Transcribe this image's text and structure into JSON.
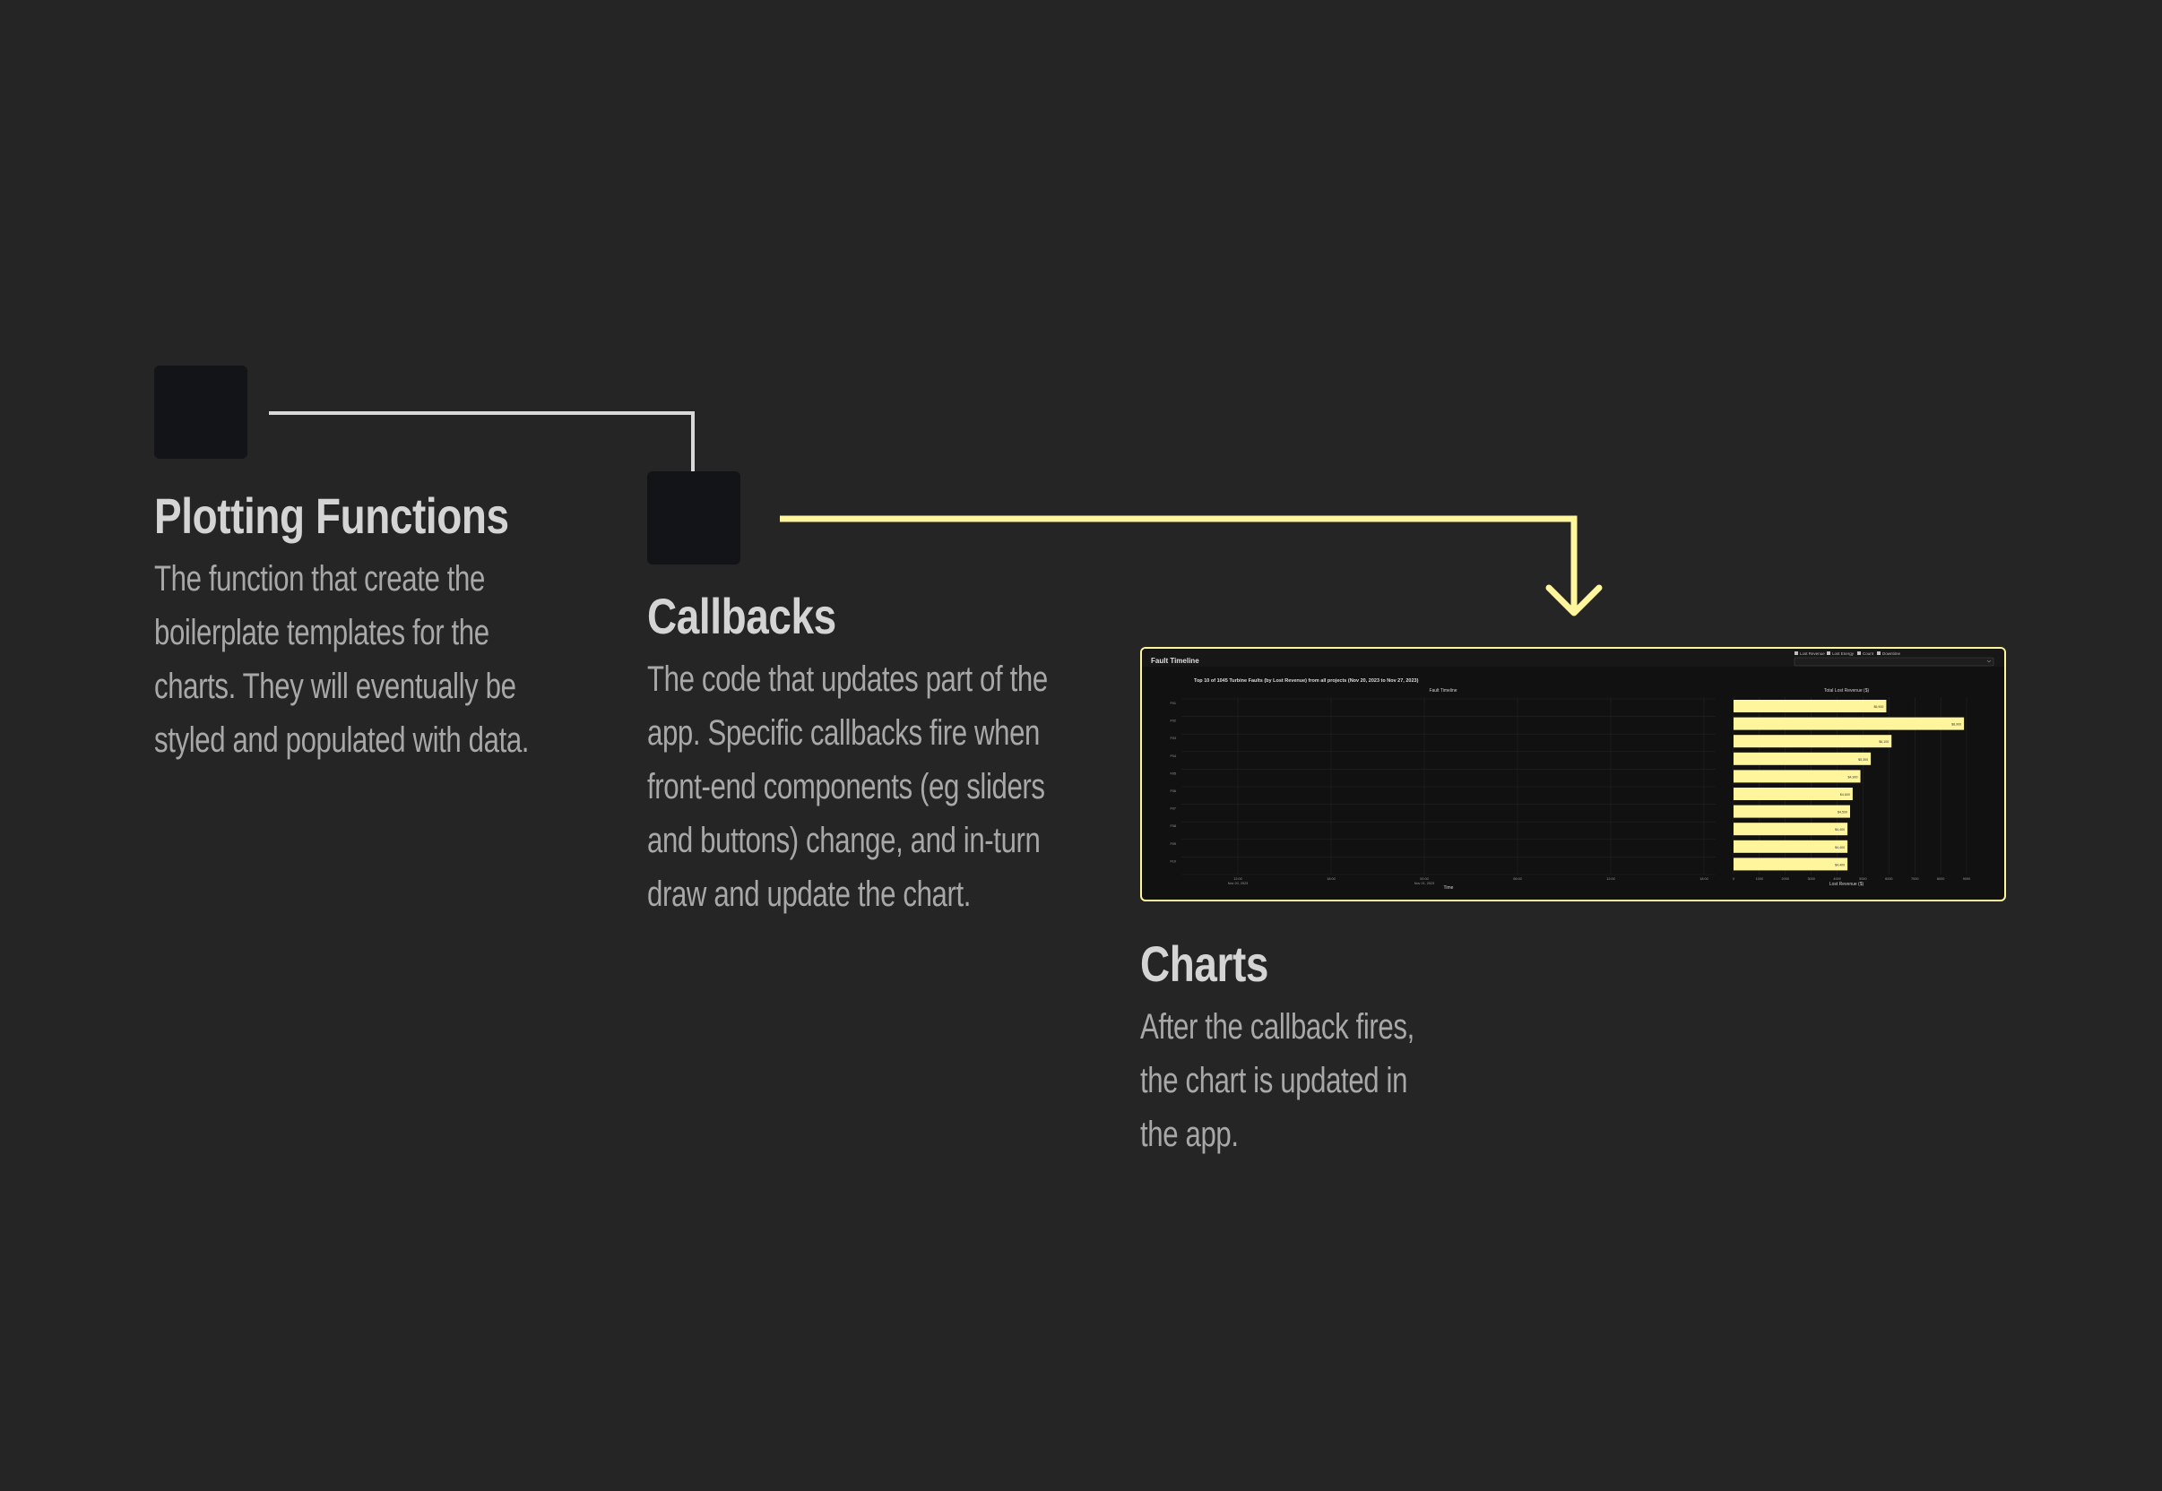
{
  "colors": {
    "background": "#252525",
    "node": "#121418",
    "connector_plain": "#d9d9d9",
    "connector_highlight": "#fff59d",
    "title": "#d4d4d4",
    "description": "#a8a8a8",
    "bar_fill": "#fff59d"
  },
  "steps": [
    {
      "title": "Plotting Functions",
      "description": "The function that create the boilerplate templates for the charts. They will eventually be styled and populated with data."
    },
    {
      "title": "Callbacks",
      "description": "The code that updates part of the app. Specific callbacks fire when front-end components (eg sliders and buttons) change, and in-turn draw and update the chart."
    },
    {
      "title": "Charts",
      "description": "After the callback fires, the chart is updated in the app."
    }
  ],
  "chart_data": {
    "type": "bar",
    "title": "Fault Timeline",
    "subtitle": "Top 10 of 1045 Turbine Faults (by Lost Revenue) from all projects (Nov 20, 2023 to Nov 27, 2023)",
    "left_panel_title": "Fault Timeline",
    "right_panel_title": "Total Lost Revenue ($)",
    "xlabel_left": "Time",
    "xlabel_right": "Lost Revenue ($)",
    "x_ticks_left": [
      "12:00\nNov 20, 2023",
      "18:00",
      "00:00\nNov 21, 2023",
      "06:00",
      "12:00",
      "18:00"
    ],
    "x_ticks_right": [
      "0",
      "1000",
      "2000",
      "3000",
      "4000",
      "5000",
      "6000",
      "7000",
      "8000",
      "9000"
    ],
    "categories": [
      "F01",
      "F02",
      "F03",
      "F04",
      "F05",
      "F06",
      "F07",
      "F08",
      "F09",
      "F10"
    ],
    "values": [
      5900,
      8900,
      6100,
      5300,
      4900,
      4600,
      4500,
      4400,
      4400,
      4400
    ],
    "xlim": [
      0,
      9000
    ],
    "grid": true,
    "legend": [
      "Lost Revenue",
      "Lost Energy",
      "Count",
      "Downtime"
    ],
    "legend_position": "top-right"
  }
}
